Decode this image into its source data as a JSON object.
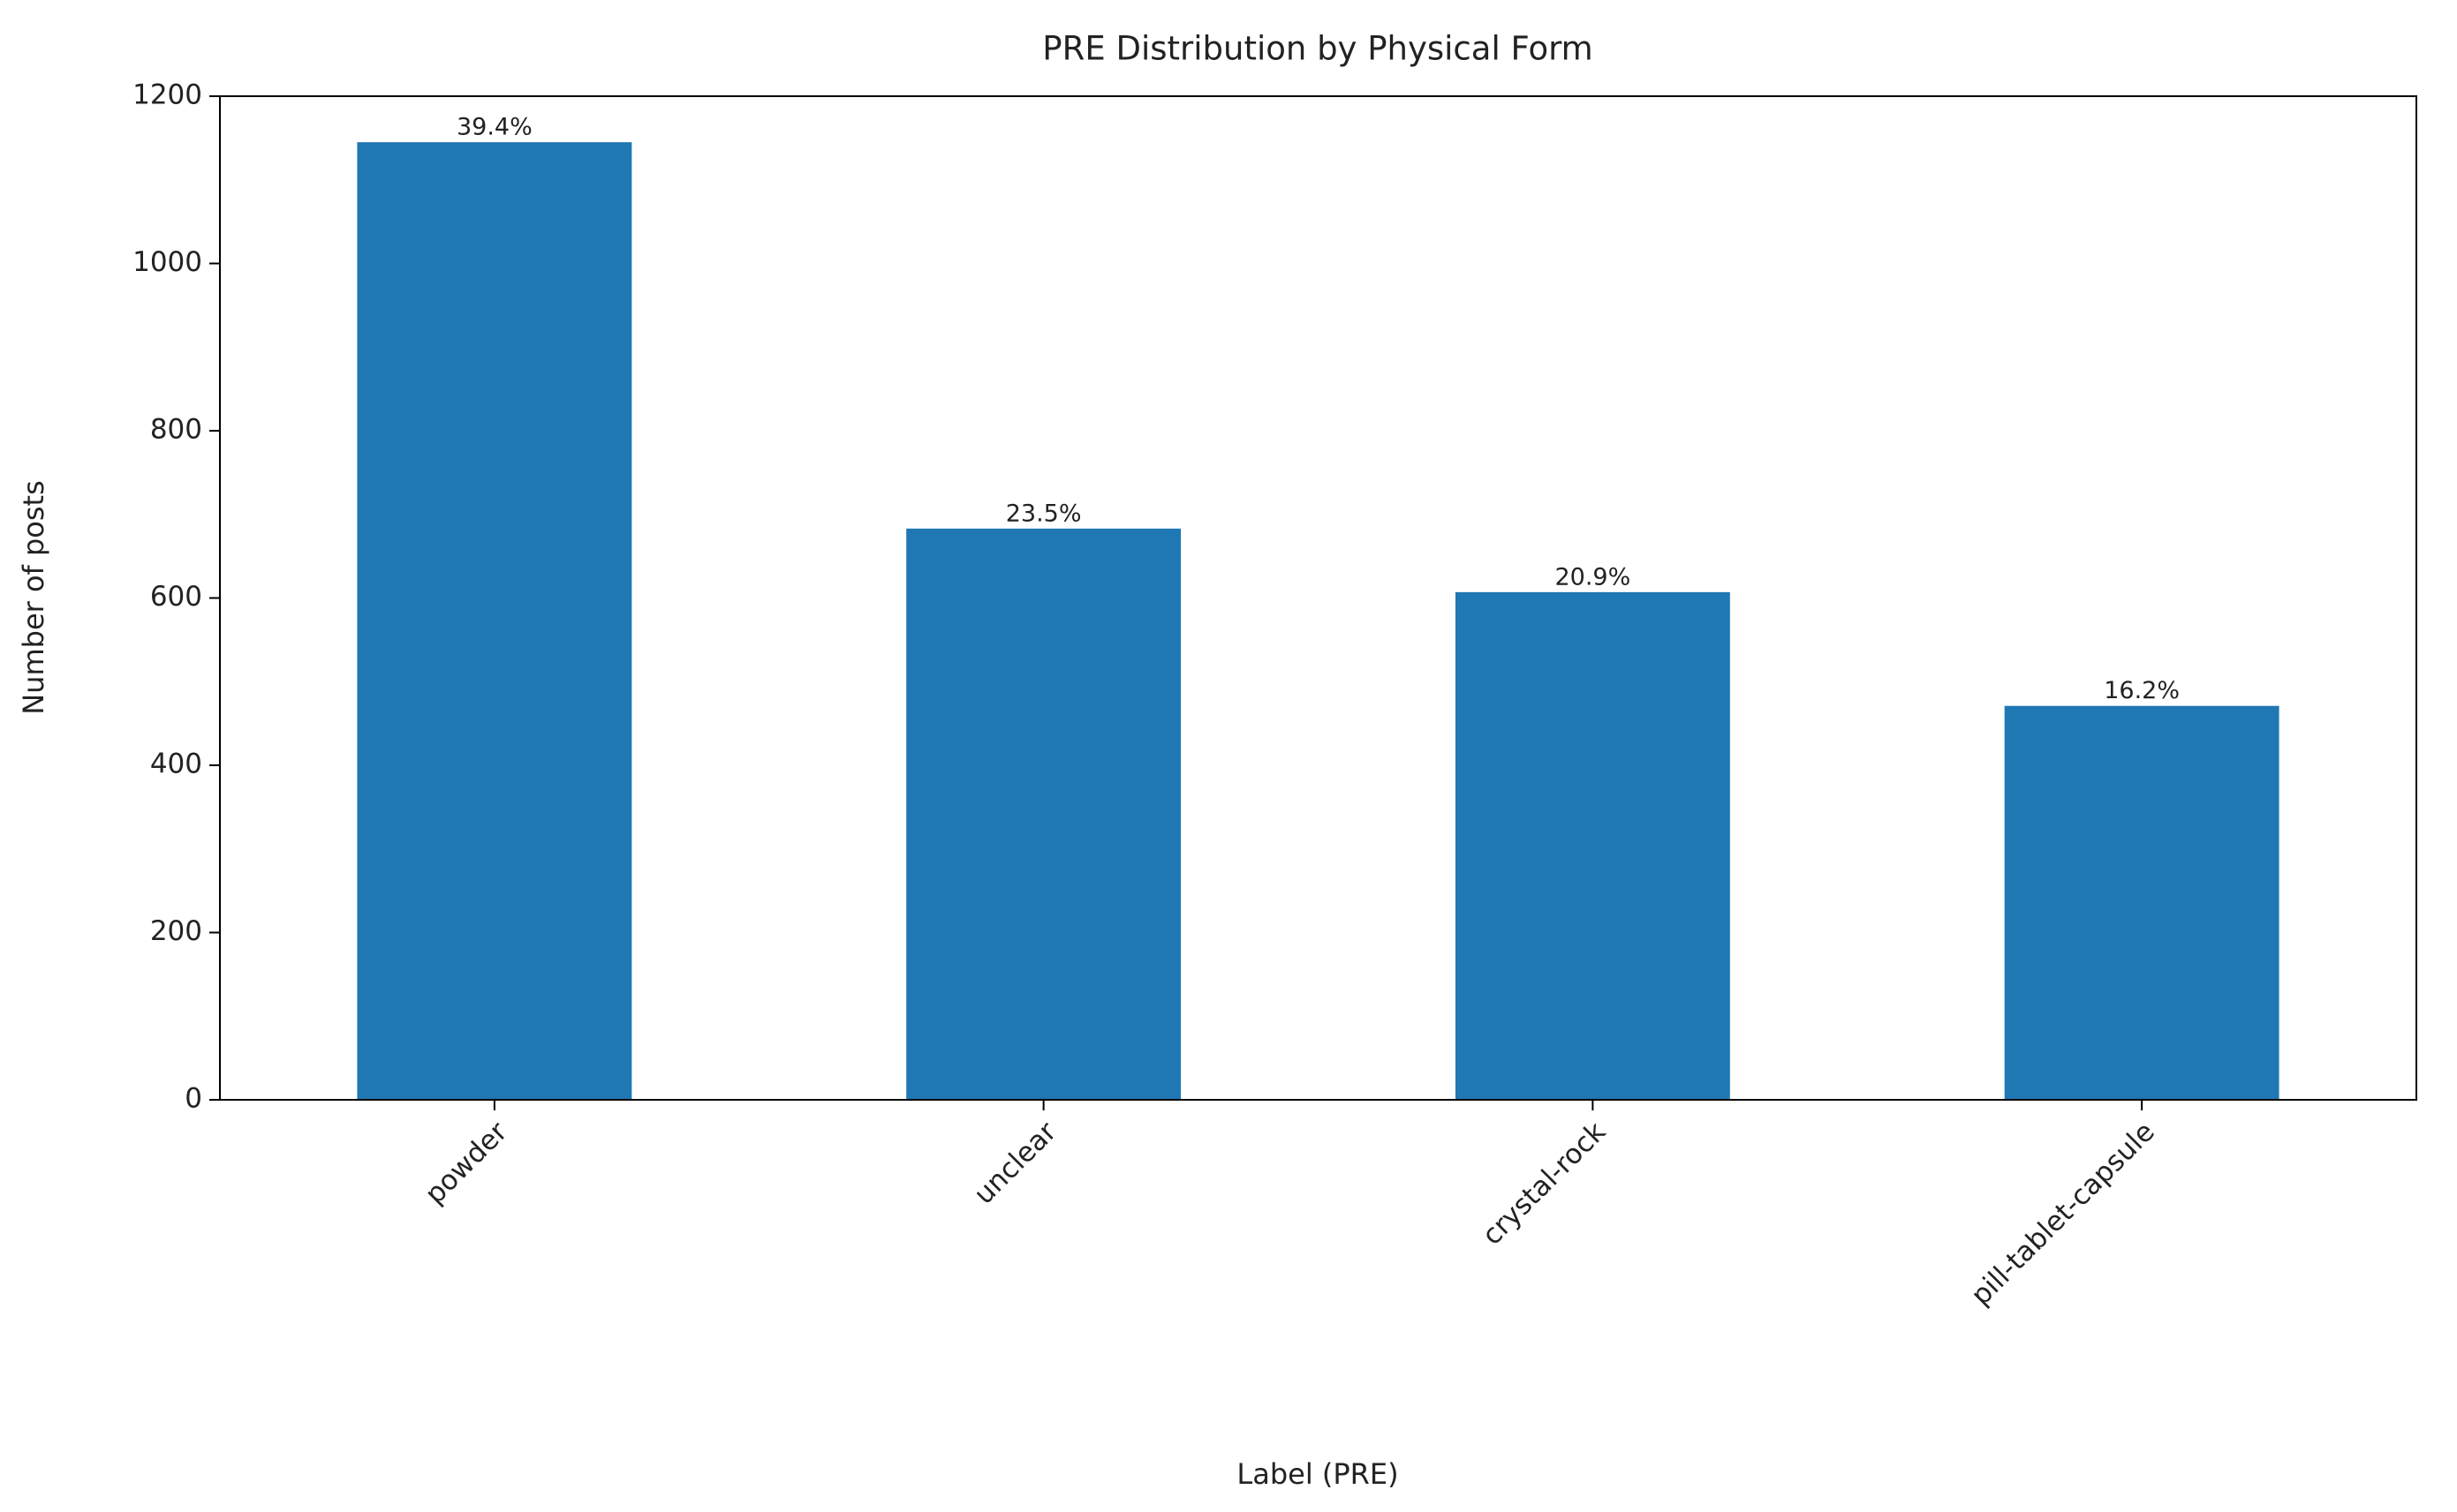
{
  "chart_data": {
    "type": "bar",
    "title": "PRE Distribution by Physical Form",
    "x_label": "Label (PRE)",
    "y_label": "Number of posts",
    "categories": [
      "powder",
      "unclear",
      "crystal-rock",
      "pill-tablet-capsule"
    ],
    "values": [
      1145,
      683,
      607,
      471
    ],
    "annotations": [
      "39.4%",
      "23.5%",
      "20.9%",
      "16.2%"
    ],
    "color": "#1f77b4",
    "ylim": [
      0,
      1200
    ],
    "yticks": [
      0,
      200,
      400,
      600,
      800,
      1000,
      1200
    ],
    "grid": false
  }
}
